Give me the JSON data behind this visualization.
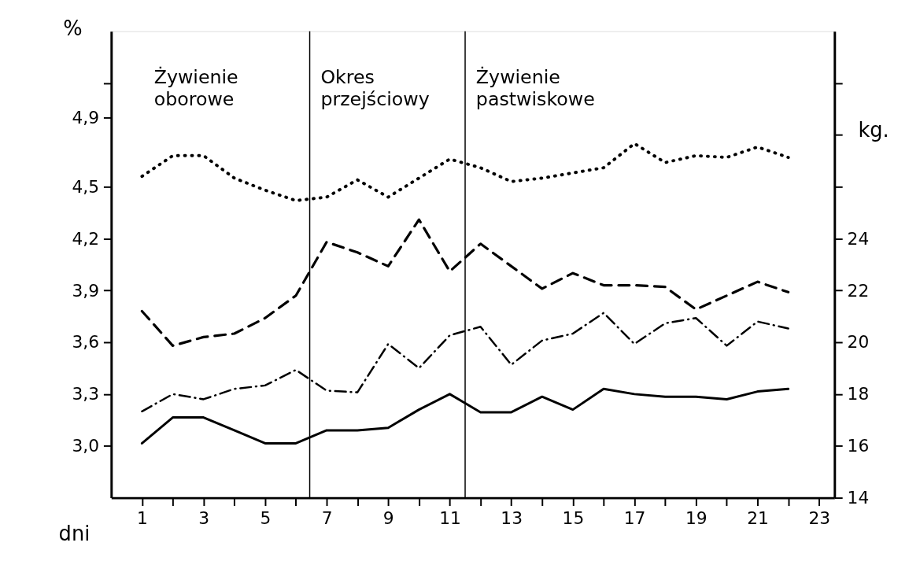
{
  "chart_data": {
    "type": "line",
    "xlabel": "dni",
    "ylabel": "%",
    "y2label": "kg.",
    "x": [
      1,
      2,
      3,
      4,
      5,
      6,
      7,
      8,
      9,
      10,
      11,
      12,
      13,
      14,
      15,
      16,
      17,
      18,
      19,
      20,
      21,
      22
    ],
    "series": [
      {
        "color": "#000000",
        "line_style": "dotted",
        "values": [
          4.56,
          4.68,
          4.68,
          4.55,
          4.48,
          4.42,
          4.44,
          4.54,
          4.44,
          4.55,
          4.66,
          4.61,
          4.53,
          4.55,
          4.58,
          4.61,
          4.75,
          4.64,
          4.68,
          4.67,
          4.73,
          4.67
        ]
      },
      {
        "color": "#000000",
        "line_style": "dashed",
        "values": [
          3.78,
          3.58,
          3.63,
          3.65,
          3.74,
          3.87,
          4.18,
          4.12,
          4.04,
          4.31,
          4.01,
          4.17,
          4.04,
          3.91,
          4.0,
          3.93,
          3.93,
          3.92,
          3.79,
          3.87,
          3.95,
          3.89
        ]
      },
      {
        "color": "#000000",
        "line_style": "dashdot",
        "values": [
          3.2,
          3.3,
          3.27,
          3.33,
          3.35,
          3.44,
          3.32,
          3.31,
          3.59,
          3.45,
          3.64,
          3.69,
          3.47,
          3.61,
          3.65,
          3.77,
          3.59,
          3.71,
          3.74,
          3.58,
          3.72,
          3.68
        ]
      },
      {
        "color": "#000000",
        "line_style": "solid",
        "axis": "y2",
        "values": [
          16.1,
          17.1,
          17.1,
          16.6,
          16.1,
          16.1,
          16.6,
          16.6,
          16.7,
          17.4,
          18.0,
          17.3,
          17.3,
          17.9,
          17.4,
          18.2,
          18.0,
          17.9,
          17.9,
          17.8,
          18.1,
          18.2
        ]
      }
    ],
    "xlim": [
      0,
      23.5
    ],
    "xticks": [
      1,
      {
        "value": 2,
        "label": null
      },
      3,
      {
        "value": 4,
        "label": null
      },
      5,
      {
        "value": 6,
        "label": null
      },
      7,
      {
        "value": 8,
        "label": null
      },
      9,
      {
        "value": 10,
        "label": null
      },
      11,
      {
        "value": 12,
        "label": null
      },
      13,
      {
        "value": 14,
        "label": null
      },
      15,
      {
        "value": 16,
        "label": null
      },
      17,
      {
        "value": 18,
        "label": null
      },
      19,
      {
        "value": 20,
        "label": null
      },
      21,
      {
        "value": 22,
        "label": null
      },
      23
    ],
    "ylim": [
      2.7,
      5.4
    ],
    "yticks": [
      {
        "value": 3.0,
        "label": "3,0"
      },
      {
        "value": 3.3,
        "label": "3,3"
      },
      {
        "value": 3.6,
        "label": "3,6"
      },
      {
        "value": 3.9,
        "label": "3,9"
      },
      {
        "value": 4.2,
        "label": "4,2"
      },
      {
        "value": 4.5,
        "label": "4,5"
      },
      {
        "value": 4.9,
        "label": "4,9"
      },
      {
        "value": 5.1,
        "label": null
      }
    ],
    "y2lim": [
      14,
      32
    ],
    "y2ticks": [
      14,
      16,
      18,
      20,
      22,
      24,
      {
        "value": 26,
        "label": null
      },
      {
        "value": 28,
        "label": null
      },
      {
        "value": 30,
        "label": null
      }
    ],
    "ref_lines": [
      {
        "axis": "x",
        "value": 6.45,
        "color": "#000000"
      },
      {
        "axis": "x",
        "value": 11.5,
        "color": "#000000"
      }
    ],
    "annotations": [
      "Żywienie\noborowe",
      "Okres\nprzejściowy",
      "Żywienie\npastwiskowe"
    ],
    "grid": false,
    "legend": false
  }
}
